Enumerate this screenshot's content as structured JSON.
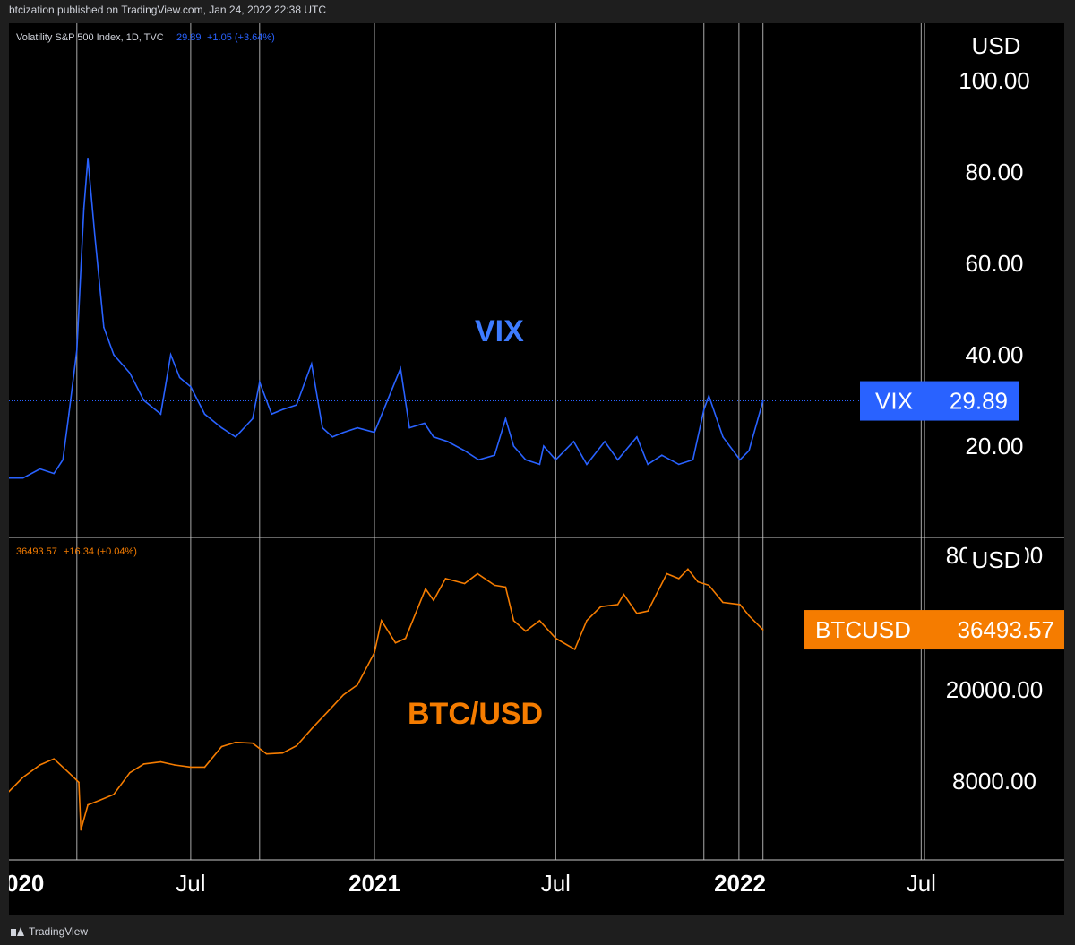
{
  "header": {
    "published": "btcization published on TradingView.com, Jan 24, 2022 22:38 UTC"
  },
  "footer": {
    "brand": "TradingView"
  },
  "colors": {
    "vix": "#2962ff",
    "vix_label": "#3d7bff",
    "btc": "#f57c00",
    "grid": "#c8c8c8",
    "background": "#000000"
  },
  "chart_data": [
    {
      "type": "line",
      "pane": "top",
      "legend": {
        "name": "Volatility S&P 500 Index, 1D, TVC",
        "value": "29.89",
        "change": "+1.05 (+3.64%)"
      },
      "annotation": "VIX",
      "currency_label": "USD",
      "last_value_badge": {
        "name": "VIX",
        "value": "29.89"
      },
      "y_ticks": [
        "100.00",
        "80.00",
        "60.00",
        "40.00",
        "20.00"
      ],
      "ylim": [
        0,
        110
      ],
      "x": [
        "2020-01-01",
        "2020-01-15",
        "2020-02-01",
        "2020-02-15",
        "2020-02-24",
        "2020-03-01",
        "2020-03-09",
        "2020-03-16",
        "2020-03-20",
        "2020-03-27",
        "2020-04-05",
        "2020-04-15",
        "2020-05-01",
        "2020-05-15",
        "2020-06-01",
        "2020-06-11",
        "2020-06-20",
        "2020-07-01",
        "2020-07-15",
        "2020-08-01",
        "2020-08-15",
        "2020-09-01",
        "2020-09-08",
        "2020-09-20",
        "2020-10-01",
        "2020-10-15",
        "2020-10-30",
        "2020-11-10",
        "2020-11-20",
        "2020-12-01",
        "2020-12-15",
        "2021-01-01",
        "2021-01-27",
        "2021-02-05",
        "2021-02-20",
        "2021-03-01",
        "2021-03-15",
        "2021-04-01",
        "2021-04-15",
        "2021-05-01",
        "2021-05-12",
        "2021-05-20",
        "2021-06-01",
        "2021-06-15",
        "2021-06-19",
        "2021-07-01",
        "2021-07-19",
        "2021-08-01",
        "2021-08-19",
        "2021-09-01",
        "2021-09-20",
        "2021-10-01",
        "2021-10-15",
        "2021-11-01",
        "2021-11-15",
        "2021-11-26",
        "2021-12-01",
        "2021-12-15",
        "2022-01-01",
        "2022-01-10",
        "2022-01-24"
      ],
      "values": [
        13,
        13,
        15,
        14,
        17,
        27,
        41,
        72,
        83,
        66,
        46,
        40,
        36,
        30,
        27,
        40,
        35,
        33,
        27,
        24,
        22,
        26,
        34,
        27,
        28,
        29,
        38,
        24,
        22,
        23,
        24,
        23,
        37,
        24,
        25,
        22,
        21,
        19,
        17,
        18,
        26,
        20,
        17,
        16,
        20,
        17,
        21,
        16,
        21,
        17,
        22,
        16,
        18,
        16,
        17,
        28,
        31,
        22,
        17,
        19,
        29.89
      ]
    },
    {
      "type": "line",
      "pane": "bottom",
      "legend": {
        "value": "36493.57",
        "change": "+16.34 (+0.04%)"
      },
      "annotation": "BTC/USD",
      "currency_label": "USD",
      "last_value_badge": {
        "name": "BTCUSD",
        "value": "36493.57"
      },
      "y_ticks": [
        "80000.00",
        "20000.00",
        "8000.00"
      ],
      "y_scale": "log",
      "ylim": [
        4000,
        80000
      ],
      "x": [
        "2020-01-01",
        "2020-01-15",
        "2020-02-01",
        "2020-02-15",
        "2020-03-01",
        "2020-03-11",
        "2020-03-13",
        "2020-03-20",
        "2020-04-01",
        "2020-04-15",
        "2020-05-01",
        "2020-05-15",
        "2020-06-01",
        "2020-06-15",
        "2020-07-01",
        "2020-07-15",
        "2020-08-01",
        "2020-08-15",
        "2020-09-01",
        "2020-09-15",
        "2020-10-01",
        "2020-10-15",
        "2020-11-01",
        "2020-11-15",
        "2020-12-01",
        "2020-12-15",
        "2021-01-01",
        "2021-01-08",
        "2021-01-22",
        "2021-02-01",
        "2021-02-21",
        "2021-03-01",
        "2021-03-13",
        "2021-04-01",
        "2021-04-14",
        "2021-05-01",
        "2021-05-12",
        "2021-05-20",
        "2021-06-01",
        "2021-06-15",
        "2021-07-01",
        "2021-07-20",
        "2021-08-01",
        "2021-08-15",
        "2021-09-01",
        "2021-09-07",
        "2021-09-20",
        "2021-10-01",
        "2021-10-20",
        "2021-11-01",
        "2021-11-10",
        "2021-11-20",
        "2021-12-01",
        "2021-12-15",
        "2022-01-01",
        "2022-01-10",
        "2022-01-24"
      ],
      "values": [
        7200,
        8300,
        9400,
        10000,
        8700,
        7900,
        4900,
        6300,
        6600,
        7000,
        8700,
        9500,
        9700,
        9400,
        9200,
        9200,
        11300,
        11800,
        11700,
        10500,
        10600,
        11400,
        13800,
        16000,
        19000,
        21000,
        29000,
        40000,
        32000,
        33500,
        55000,
        49000,
        61000,
        58000,
        64000,
        57000,
        56000,
        40000,
        36000,
        40000,
        33500,
        30000,
        40000,
        46000,
        47000,
        52000,
        43000,
        44000,
        64000,
        61000,
        67000,
        59000,
        57000,
        48000,
        47000,
        42000,
        36493.57
      ]
    }
  ],
  "x_axis": {
    "labels": [
      "020",
      "Jul",
      "2021",
      "Jul",
      "2022",
      "Jul"
    ]
  }
}
